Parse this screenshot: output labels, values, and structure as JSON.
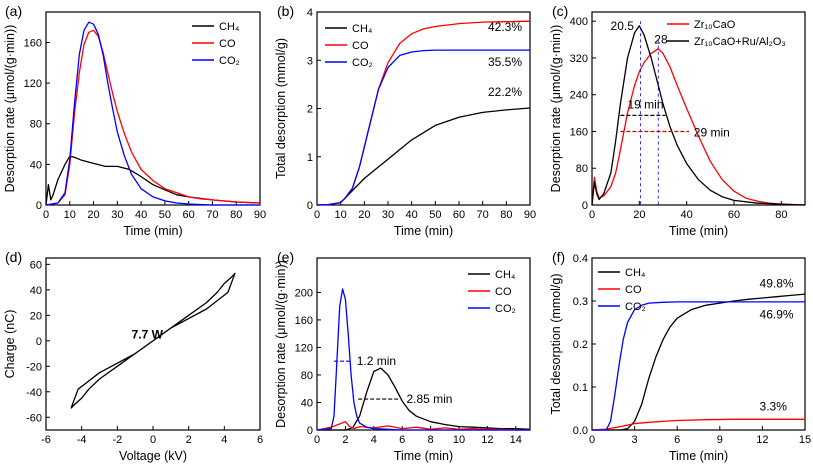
{
  "colors": {
    "CH4": "#000000",
    "CO": "#ff0000",
    "CO2": "#0000ff",
    "red_ann": "#cc0000",
    "black": "#000000"
  },
  "chart_data": [
    {
      "panel": "(a)",
      "type": "line",
      "xlabel": "Time (min)",
      "ylabel": "Desorption rate (μmol/(g·min))",
      "xlim": [
        0,
        90
      ],
      "ylim": [
        0,
        190
      ],
      "xticks": [
        0,
        10,
        20,
        30,
        40,
        50,
        60,
        70,
        80,
        90
      ],
      "yticks": [
        0,
        40,
        80,
        120,
        160
      ],
      "legend": [
        "CH₄",
        "CO",
        "CO₂"
      ],
      "series": [
        {
          "name": "CH4",
          "color": "#000000",
          "x": [
            0,
            1,
            2,
            3,
            5,
            8,
            10,
            12,
            15,
            20,
            25,
            30,
            35,
            40,
            45,
            50,
            55,
            60,
            70,
            80,
            90
          ],
          "y": [
            0,
            20,
            5,
            10,
            25,
            40,
            48,
            47,
            44,
            41,
            38,
            38,
            35,
            28,
            20,
            15,
            10,
            8,
            5,
            3,
            2
          ]
        },
        {
          "name": "CO",
          "color": "#ff0000",
          "x": [
            0,
            5,
            8,
            10,
            12,
            14,
            16,
            18,
            20,
            22,
            24,
            26,
            28,
            30,
            33,
            36,
            40,
            45,
            50,
            55,
            60,
            65,
            70,
            80,
            90
          ],
          "y": [
            0,
            2,
            10,
            40,
            90,
            130,
            158,
            170,
            172,
            166,
            150,
            130,
            110,
            92,
            70,
            52,
            35,
            24,
            16,
            12,
            8,
            6,
            5,
            3,
            2
          ]
        },
        {
          "name": "CO2",
          "color": "#0000ff",
          "x": [
            0,
            5,
            8,
            10,
            12,
            14,
            16,
            18,
            20,
            22,
            24,
            26,
            28,
            30,
            33,
            36,
            40,
            45,
            50,
            55,
            60,
            70,
            80,
            90
          ],
          "y": [
            0,
            2,
            12,
            45,
            100,
            148,
            172,
            180,
            178,
            168,
            148,
            120,
            95,
            72,
            48,
            30,
            16,
            8,
            4,
            2,
            1,
            0,
            0,
            0
          ]
        }
      ]
    },
    {
      "panel": "(b)",
      "type": "line",
      "xlabel": "Time (min)",
      "ylabel": "Total desorption (mmol/g)",
      "xlim": [
        0,
        90
      ],
      "ylim": [
        0,
        4
      ],
      "xticks": [
        0,
        10,
        20,
        30,
        40,
        50,
        60,
        70,
        80,
        90
      ],
      "yticks": [
        0,
        1,
        2,
        3,
        4
      ],
      "legend": [
        "CH₄",
        "CO",
        "CO₂"
      ],
      "labels": {
        "co": "42.3%",
        "co2": "35.5%",
        "ch4": "22.2%"
      },
      "series": [
        {
          "name": "CH4",
          "color": "#000000",
          "x": [
            0,
            5,
            10,
            15,
            20,
            25,
            30,
            35,
            40,
            50,
            60,
            70,
            80,
            90
          ],
          "y": [
            0,
            0.01,
            0.05,
            0.3,
            0.55,
            0.75,
            0.95,
            1.15,
            1.35,
            1.65,
            1.82,
            1.92,
            1.97,
            2.01
          ]
        },
        {
          "name": "CO",
          "color": "#ff0000",
          "x": [
            0,
            5,
            10,
            12,
            15,
            18,
            20,
            23,
            26,
            30,
            35,
            40,
            45,
            50,
            60,
            70,
            80,
            90
          ],
          "y": [
            0,
            0.01,
            0.05,
            0.15,
            0.35,
            0.8,
            1.2,
            1.8,
            2.4,
            2.95,
            3.35,
            3.55,
            3.65,
            3.7,
            3.76,
            3.79,
            3.8,
            3.81
          ]
        },
        {
          "name": "CO2",
          "color": "#0000ff",
          "x": [
            0,
            5,
            10,
            12,
            15,
            18,
            20,
            23,
            26,
            30,
            35,
            40,
            45,
            50,
            60,
            70,
            80,
            90
          ],
          "y": [
            0,
            0.01,
            0.05,
            0.15,
            0.35,
            0.8,
            1.2,
            1.8,
            2.4,
            2.85,
            3.1,
            3.17,
            3.2,
            3.21,
            3.21,
            3.21,
            3.21,
            3.21
          ]
        }
      ]
    },
    {
      "panel": "(c)",
      "type": "line",
      "xlabel": "Time (min)",
      "ylabel": "Desorption rate (μmol/(g·min))",
      "xlim": [
        0,
        90
      ],
      "ylim": [
        0,
        420
      ],
      "xticks": [
        0,
        20,
        40,
        60,
        80
      ],
      "yticks": [
        0,
        80,
        160,
        240,
        320,
        400
      ],
      "legend": [
        "Zr₁₀CaO",
        "Zr₁₀CaO+Ru/Al₂O₃"
      ],
      "labels": {
        "peak1": "20.5",
        "peak2": "28",
        "w1": "19 min",
        "w2": "29 min"
      },
      "series": [
        {
          "name": "Zr10CaO",
          "color": "#ff0000",
          "x": [
            0,
            1,
            2,
            3,
            5,
            8,
            10,
            12,
            15,
            18,
            20,
            22,
            25,
            28,
            30,
            33,
            36,
            40,
            45,
            50,
            55,
            60,
            65,
            70,
            75,
            80,
            90
          ],
          "y": [
            0,
            60,
            30,
            15,
            20,
            40,
            70,
            120,
            200,
            260,
            290,
            310,
            330,
            340,
            330,
            300,
            260,
            210,
            150,
            95,
            55,
            30,
            15,
            8,
            4,
            2,
            0
          ]
        },
        {
          "name": "Zr10CaO+Ru/Al2O3",
          "color": "#000000",
          "x": [
            0,
            1,
            2,
            3,
            5,
            8,
            10,
            12,
            15,
            18,
            20,
            22,
            25,
            28,
            30,
            33,
            36,
            40,
            45,
            50,
            55,
            60,
            70,
            80,
            90
          ],
          "y": [
            0,
            50,
            25,
            12,
            25,
            70,
            140,
            220,
            320,
            375,
            390,
            370,
            320,
            260,
            220,
            170,
            130,
            90,
            55,
            32,
            18,
            10,
            4,
            2,
            0
          ]
        }
      ]
    },
    {
      "panel": "(d)",
      "type": "line",
      "xlabel": "Voltage (kV)",
      "ylabel": "Charge (nC)",
      "xlim": [
        -6,
        6
      ],
      "ylim": [
        -70,
        65
      ],
      "xticks": [
        -6,
        -4,
        -2,
        0,
        2,
        4,
        6
      ],
      "yticks": [
        -60,
        -40,
        -20,
        0,
        20,
        40,
        60
      ],
      "labels": {
        "power": "7.7 W"
      },
      "series": [
        {
          "name": "loop",
          "color": "#000000",
          "x": [
            -4.6,
            -4.2,
            -3,
            -1,
            0.5,
            2,
            3,
            3.6,
            4,
            4.4,
            4.6,
            4.2,
            3,
            1,
            -0.5,
            -2,
            -3,
            -3.6,
            -4,
            -4.4,
            -4.6
          ],
          "y": [
            -53,
            -38,
            -25,
            -10,
            5,
            20,
            30,
            38,
            45,
            50,
            53,
            38,
            25,
            10,
            -5,
            -20,
            -30,
            -38,
            -45,
            -50,
            -53
          ]
        }
      ]
    },
    {
      "panel": "(e)",
      "type": "line",
      "xlabel": "Time (min)",
      "ylabel": "Desorption rate (μmol/(g·min))",
      "xlim": [
        0,
        15
      ],
      "ylim": [
        0,
        250
      ],
      "xticks": [
        0,
        2,
        4,
        6,
        8,
        10,
        12,
        14
      ],
      "yticks": [
        0,
        40,
        80,
        120,
        160,
        200
      ],
      "legend": [
        "CH₄",
        "CO",
        "CO₂"
      ],
      "labels": {
        "w1": "1.2 min",
        "w2": "2.85 min"
      },
      "series": [
        {
          "name": "CH4",
          "color": "#000000",
          "x": [
            0,
            2,
            2.5,
            3,
            3.5,
            4,
            4.5,
            5,
            5.5,
            6,
            6.5,
            7,
            8,
            9,
            10,
            11,
            12,
            13,
            14,
            15
          ],
          "y": [
            0,
            0,
            3,
            20,
            55,
            85,
            90,
            80,
            62,
            42,
            28,
            20,
            12,
            8,
            5,
            4,
            3,
            2,
            2,
            1
          ]
        },
        {
          "name": "CO",
          "color": "#ff0000",
          "x": [
            0,
            1,
            1.5,
            2,
            2.3,
            2.6,
            3,
            4,
            5,
            6,
            7,
            8,
            9,
            10,
            11,
            12,
            13,
            14,
            15
          ],
          "y": [
            0,
            4,
            8,
            12,
            5,
            2,
            5,
            3,
            6,
            2,
            4,
            1,
            3,
            1,
            2,
            1,
            1,
            0,
            0
          ]
        },
        {
          "name": "CO2",
          "color": "#0000ff",
          "x": [
            0,
            1,
            1.2,
            1.4,
            1.6,
            1.8,
            2,
            2.2,
            2.4,
            2.6,
            2.8,
            3,
            3.5,
            4,
            5,
            6,
            7,
            8,
            10,
            12,
            15
          ],
          "y": [
            0,
            2,
            20,
            100,
            180,
            205,
            190,
            140,
            80,
            40,
            20,
            10,
            4,
            2,
            1,
            0,
            0,
            0,
            0,
            0,
            0
          ]
        }
      ]
    },
    {
      "panel": "(f)",
      "type": "line",
      "xlabel": "Time (min)",
      "ylabel": "Total desorption (mmol/g)",
      "xlim": [
        0,
        15
      ],
      "ylim": [
        0,
        0.4
      ],
      "xticks": [
        0,
        3,
        6,
        9,
        12,
        15
      ],
      "yticks": [
        0.0,
        0.1,
        0.2,
        0.3,
        0.4
      ],
      "legend": [
        "CH₄",
        "CO",
        "CO₂"
      ],
      "labels": {
        "ch4": "49.8%",
        "co2": "46.9%",
        "co": "3.3%"
      },
      "series": [
        {
          "name": "CH4",
          "color": "#000000",
          "x": [
            0,
            2,
            2.5,
            3,
            3.5,
            4,
            4.5,
            5,
            5.5,
            6,
            7,
            8,
            9,
            10,
            11,
            12,
            13,
            14,
            15
          ],
          "y": [
            0,
            0,
            0.003,
            0.02,
            0.06,
            0.12,
            0.17,
            0.21,
            0.24,
            0.26,
            0.28,
            0.29,
            0.295,
            0.3,
            0.304,
            0.307,
            0.31,
            0.313,
            0.316
          ]
        },
        {
          "name": "CO",
          "color": "#ff0000",
          "x": [
            0,
            1,
            2,
            3,
            4,
            5,
            6,
            8,
            10,
            12,
            15
          ],
          "y": [
            0,
            0.002,
            0.008,
            0.015,
            0.018,
            0.02,
            0.022,
            0.024,
            0.025,
            0.025,
            0.025
          ]
        },
        {
          "name": "CO2",
          "color": "#0000ff",
          "x": [
            0,
            1,
            1.3,
            1.6,
            1.9,
            2.2,
            2.5,
            3,
            3.5,
            4,
            5,
            6,
            8,
            10,
            12,
            15
          ],
          "y": [
            0,
            0,
            0.02,
            0.08,
            0.15,
            0.21,
            0.25,
            0.28,
            0.29,
            0.295,
            0.297,
            0.298,
            0.298,
            0.298,
            0.298,
            0.298
          ]
        }
      ]
    }
  ]
}
